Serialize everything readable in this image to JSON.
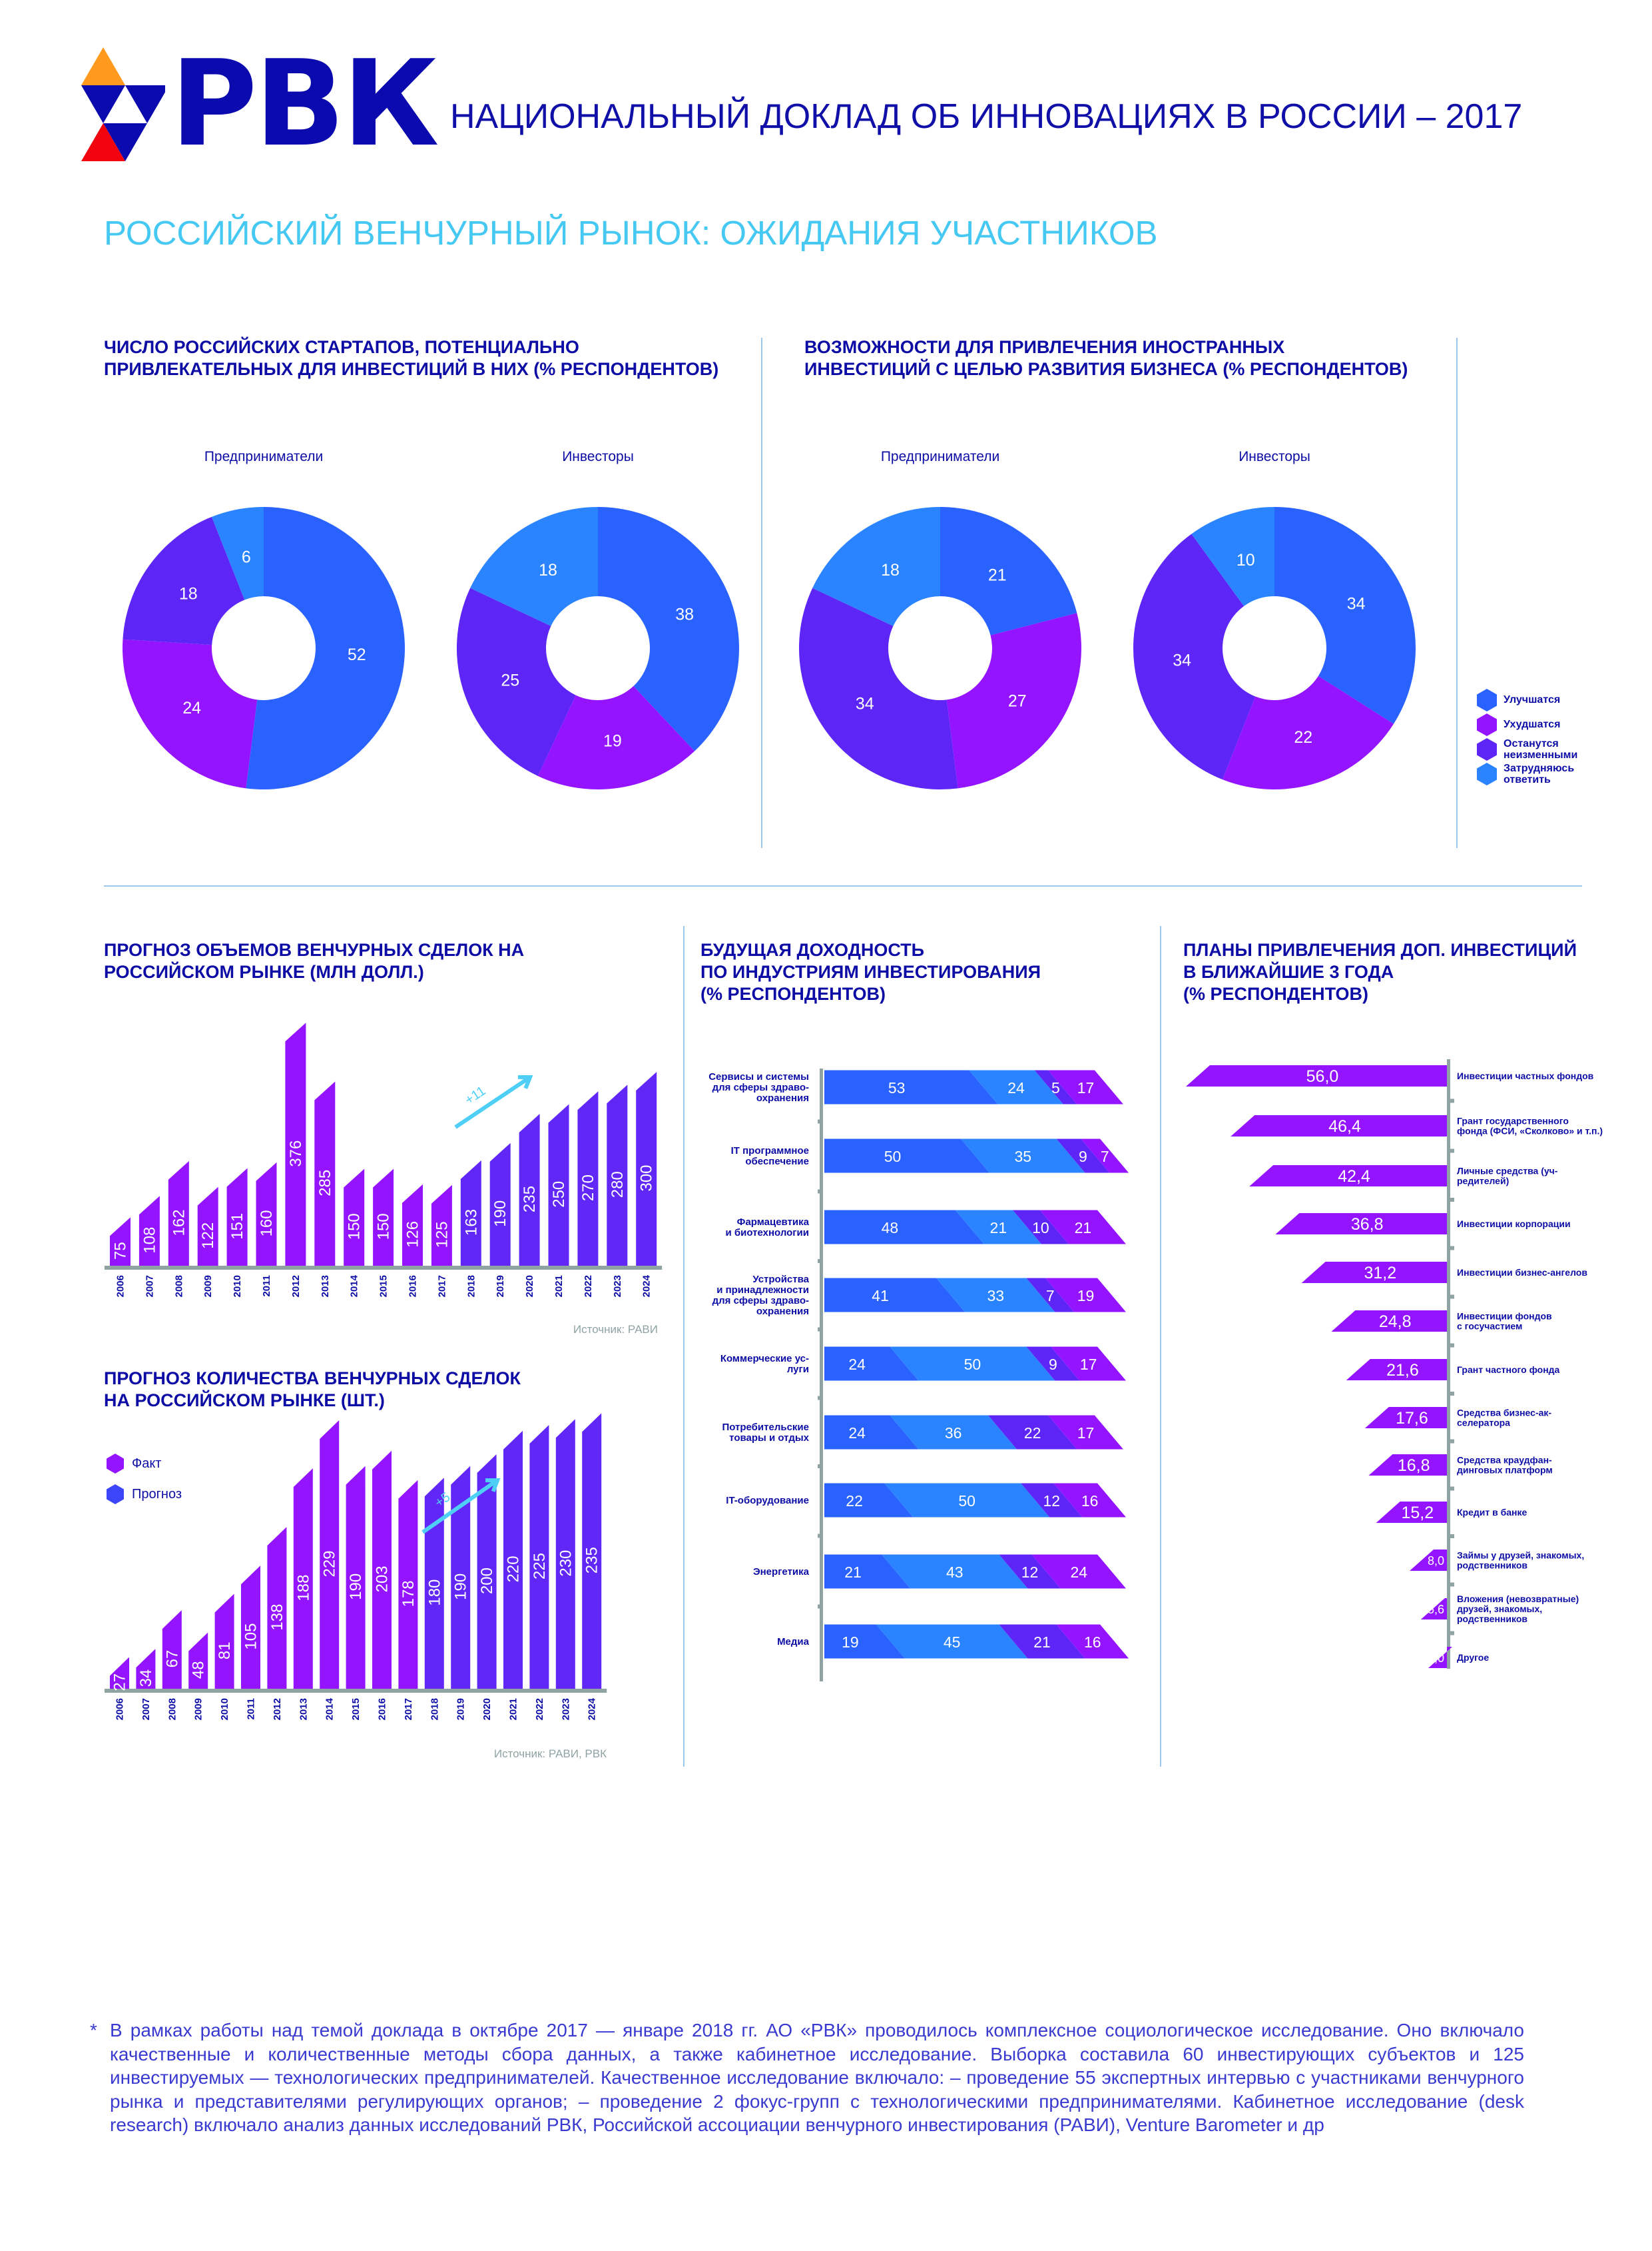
{
  "header": {
    "logo_text": "РВК",
    "title": "НАЦИОНАЛЬНЫЙ ДОКЛАД ОБ ИННОВАЦИЯХ В РОССИИ – 2017"
  },
  "section_title": "РОССИЙСКИЙ ВЕНЧУРНЫЙ РЫНОК: ОЖИДАНИЯ УЧАСТНИКОВ",
  "colors": {
    "navy": "#0d0da6",
    "blue": "#2962ff",
    "purple": "#9414ff",
    "indigo": "#5d26f6",
    "light_blue": "#2a84ff",
    "cyan": "#4fcff5",
    "axis": "#8fa3a3",
    "logo_orange": "#ff9a1f",
    "logo_red": "#f2040f"
  },
  "donut_legend": [
    {
      "label": [
        "Улучшатся"
      ]
    },
    {
      "label": [
        "Ухудшатся"
      ]
    },
    {
      "label": [
        "Останутся",
        "неизменными"
      ]
    },
    {
      "label": [
        "Затрудняюсь",
        "ответить"
      ]
    }
  ],
  "chart_data": [
    {
      "type": "pie",
      "title": [
        "ЧИСЛО РОССИЙСКИХ СТАРТАПОВ, ПОТЕНЦИАЛЬНО",
        "ПРИВЛЕКАТЕЛЬНЫХ ДЛЯ ИНВЕСТИЦИЙ В НИХ (% РЕСПОНДЕНТОВ)"
      ],
      "pies": [
        {
          "label": "Предприниматели",
          "values": [
            52,
            24,
            18,
            6
          ]
        },
        {
          "label": "Инвесторы",
          "values": [
            38,
            19,
            25,
            18
          ]
        }
      ]
    },
    {
      "type": "pie",
      "title": [
        "ВОЗМОЖНОСТИ ДЛЯ ПРИВЛЕЧЕНИЯ ИНОСТРАННЫХ",
        "ИНВЕСТИЦИЙ С ЦЕЛЬЮ РАЗВИТИЯ БИЗНЕСА (% РЕСПОНДЕНТОВ)"
      ],
      "pies": [
        {
          "label": "Предприниматели",
          "values": [
            21,
            27,
            34,
            18
          ]
        },
        {
          "label": "Инвесторы",
          "values": [
            34,
            22,
            34,
            10
          ]
        }
      ]
    },
    {
      "type": "bar",
      "title": [
        "ПРОГНОЗ ОБЪЕМОВ ВЕНЧУРНЫХ СДЕЛОК НА",
        "РОССИЙСКОМ РЫНКЕ (МЛН ДОЛЛ.)"
      ],
      "categories": [
        "2006",
        "2007",
        "2008",
        "2009",
        "2010",
        "2011",
        "2012",
        "2013",
        "2014",
        "2015",
        "2016",
        "2017",
        "2018",
        "2019",
        "2020",
        "2021",
        "2022",
        "2023",
        "2024"
      ],
      "values": [
        75,
        108,
        162,
        122,
        151,
        160,
        376,
        285,
        150,
        150,
        126,
        125,
        163,
        190,
        235,
        250,
        270,
        280,
        300
      ],
      "forecast_from": 12,
      "annotation": "+11",
      "source": "Источник: РАВИ"
    },
    {
      "type": "bar",
      "title": [
        "ПРОГНОЗ КОЛИЧЕСТВА ВЕНЧУРНЫХ СДЕЛОК",
        "НА РОССИЙСКОМ РЫНКЕ (ШТ.)"
      ],
      "categories": [
        "2006",
        "2007",
        "2008",
        "2009",
        "2010",
        "2011",
        "2012",
        "2013",
        "2014",
        "2015",
        "2016",
        "2017",
        "2018",
        "2019",
        "2020",
        "2021",
        "2022",
        "2023",
        "2024"
      ],
      "values": [
        27,
        34,
        67,
        48,
        81,
        105,
        138,
        188,
        229,
        190,
        203,
        178,
        180,
        190,
        200,
        220,
        225,
        230,
        235
      ],
      "forecast_from": 12,
      "legend": [
        "Факт",
        "Прогноз"
      ],
      "annotation": "+5",
      "source": "Источник: РАВИ, РВК"
    },
    {
      "type": "bar",
      "orientation": "horizontal-stacked",
      "title": [
        "БУДУЩАЯ ДОХОДНОСТЬ",
        "ПО ИНДУСТРИЯМ ИНВЕСТИРОВАНИЯ",
        "(% РЕСПОНДЕНТОВ)"
      ],
      "rows": [
        {
          "label": [
            "Сервисы и системы",
            "для сферы здраво-",
            "охранения"
          ],
          "values": [
            53,
            24,
            5,
            17
          ]
        },
        {
          "label": [
            "IT программное",
            "обеспечение"
          ],
          "values": [
            50,
            35,
            9,
            7
          ]
        },
        {
          "label": [
            "Фармацевтика",
            "и биотехнологии"
          ],
          "values": [
            48,
            21,
            10,
            21
          ]
        },
        {
          "label": [
            "Устройства",
            "и принадлежности",
            "для сферы здраво-",
            "охранения"
          ],
          "values": [
            41,
            33,
            7,
            19
          ]
        },
        {
          "label": [
            "Коммерческие ус-",
            "луги"
          ],
          "values": [
            24,
            50,
            9,
            17
          ]
        },
        {
          "label": [
            "Потребительские",
            "товары и отдых"
          ],
          "values": [
            24,
            36,
            22,
            17
          ]
        },
        {
          "label": [
            "IT-оборудование"
          ],
          "values": [
            22,
            50,
            12,
            16
          ]
        },
        {
          "label": [
            "Энергетика"
          ],
          "values": [
            21,
            43,
            12,
            24
          ]
        },
        {
          "label": [
            "Медиа"
          ],
          "values": [
            19,
            45,
            21,
            16
          ]
        }
      ]
    },
    {
      "type": "bar",
      "orientation": "horizontal",
      "title": [
        "ПЛАНЫ ПРИВЛЕЧЕНИЯ ДОП. ИНВЕСТИЦИЙ",
        "В БЛИЖАЙШИЕ 3 ГОДА",
        "(% РЕСПОНДЕНТОВ)"
      ],
      "rows": [
        {
          "label": [
            "Инвестиции частных фондов"
          ],
          "value": 56.0,
          "display": "56,0"
        },
        {
          "label": [
            "Грант государственного",
            "фонда (ФСИ, «Сколково» и т.п.)"
          ],
          "value": 46.4,
          "display": "46,4"
        },
        {
          "label": [
            "Личные средства (уч-",
            "редителей)"
          ],
          "value": 42.4,
          "display": "42,4"
        },
        {
          "label": [
            "Инвестиции корпорации"
          ],
          "value": 36.8,
          "display": "36,8"
        },
        {
          "label": [
            "Инвестиции бизнес-ангелов"
          ],
          "value": 31.2,
          "display": "31,2"
        },
        {
          "label": [
            "Инвестиции фондов",
            "с госучастием"
          ],
          "value": 24.8,
          "display": "24,8"
        },
        {
          "label": [
            "Грант частного фонда"
          ],
          "value": 21.6,
          "display": "21,6"
        },
        {
          "label": [
            "Средства бизнес-ак-",
            "селератора"
          ],
          "value": 17.6,
          "display": "17,6"
        },
        {
          "label": [
            "Средства краудфан-",
            "динговых платформ"
          ],
          "value": 16.8,
          "display": "16,8"
        },
        {
          "label": [
            "Кредит в банке"
          ],
          "value": 15.2,
          "display": "15,2"
        },
        {
          "label": [
            "Займы у друзей, знакомых,",
            "родственников"
          ],
          "value": 8.0,
          "display": "8,0"
        },
        {
          "label": [
            "Вложения (невозвратные)",
            "друзей, знакомых,",
            "родственников"
          ],
          "value": 5.6,
          "display": "5,6"
        },
        {
          "label": [
            "Другое"
          ],
          "value": 4.0,
          "display": "4,0"
        }
      ]
    }
  ],
  "footer": {
    "marker": "*",
    "text": "В  рамках работы над  темой доклада в  октябре 2017  — январе 2018  гг. АО «РВК» проводилось комплексное социологическое исследование. Оно включало качественные и  количественные методы сбора данных, а  также кабинетное исследование. Выборка составила 60 инвестирующих субъек­тов и 125 инвестируемых — технологических предпринимателей. Качественное исследование включало: – проведение 55 экспертных интервью с участниками венчурного рынка и представителями регулирующих органов; – проведение 2 фокус-групп с технологическими предпринимателями. Кабинетное исследование (desk research) включало анализ данных исследований РВК, Российской ассоциации венчурного инвестирования (РАВИ), Venture Barometer и др"
  }
}
